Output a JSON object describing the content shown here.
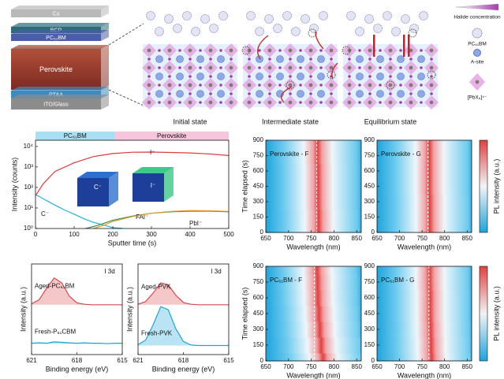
{
  "illustration": {
    "stack": [
      "Cu",
      "BCP",
      "PC₆₁BM",
      "Perovskite",
      "PTAA",
      "ITO/Glass"
    ],
    "states": [
      "Initial state",
      "Intermediate state",
      "Equilibrium state"
    ],
    "legend": [
      "Halide concentration",
      "PC₆₁BM",
      "A-site",
      "[PbX₆]⁴⁻"
    ]
  },
  "chart_data": [
    {
      "type": "line",
      "log_y": true,
      "xlabel": "Sputter time (s)",
      "ylabel": "Intensity (counts)",
      "xlim": [
        0,
        500
      ],
      "ylim": [
        1,
        20000
      ],
      "xticks": [
        0,
        100,
        200,
        300,
        400,
        500
      ],
      "yticks": [
        {
          "value": 1,
          "label": "10⁰"
        },
        {
          "value": 10,
          "label": "10¹"
        },
        {
          "value": 100,
          "label": "10²"
        },
        {
          "value": 1000,
          "label": "10³"
        },
        {
          "value": 10000,
          "label": "10⁴"
        }
      ],
      "regions": [
        {
          "label": "PC₆₁BM",
          "start": 0,
          "end": 205,
          "color": "#a9dff2"
        },
        {
          "label": "Perovskite",
          "start": 205,
          "end": 500,
          "color": "#f6c6dc"
        }
      ],
      "annotations": [
        "C⁻",
        "I⁻"
      ],
      "series": [
        {
          "name": "I⁻",
          "color": "#e0393e",
          "x": [
            0,
            20,
            50,
            100,
            150,
            200,
            250,
            300,
            350,
            400,
            450,
            500
          ],
          "values": [
            40,
            150,
            600,
            1600,
            3200,
            4500,
            5200,
            5300,
            5100,
            4800,
            4300,
            3600
          ]
        },
        {
          "name": "C⁻",
          "color": "#1fb1d8",
          "x": [
            0,
            25,
            50,
            75,
            100,
            125,
            150,
            175,
            200,
            225
          ],
          "values": [
            45,
            25,
            14,
            8,
            5,
            3,
            2,
            1.5,
            1.1,
            1
          ]
        },
        {
          "name": "FAI⁻",
          "color": "#2f8f4e",
          "x": [
            130,
            160,
            200,
            250,
            300,
            350,
            400,
            450,
            500
          ],
          "values": [
            1,
            1.4,
            2.5,
            4,
            5.5,
            6.5,
            7,
            7,
            6.5
          ]
        },
        {
          "name": "PbI⁻",
          "color": "#e79a2b",
          "x": [
            150,
            175,
            200,
            250,
            300,
            350,
            400,
            450,
            500
          ],
          "values": [
            1,
            1.4,
            2.2,
            3.8,
            5.5,
            6.8,
            7.5,
            7.3,
            6.8
          ]
        }
      ]
    },
    {
      "type": "line",
      "xlabel": "Binding energy (eV)",
      "ylabel": "Intensity (a.u.)",
      "xlim": [
        621,
        615
      ],
      "ylim": [
        0,
        20
      ],
      "xticks": [
        621,
        618,
        615
      ],
      "annotations": [
        "I 3d"
      ],
      "x": [
        621,
        620.5,
        620,
        619.5,
        619,
        618.5,
        618,
        617.5,
        617,
        616.5,
        616,
        615.5,
        615
      ],
      "series": [
        {
          "name": "Aged-PC₆₁BM",
          "color": "#d9484c",
          "values": [
            11.2,
            12.1,
            14.7,
            16.9,
            15.8,
            12.9,
            11.4,
            11.1,
            11,
            11,
            11,
            11,
            11
          ]
        },
        {
          "name": "Fresh-P₆₁CBM",
          "color": "#1aa6d6",
          "values": [
            2.5,
            2.6,
            2.5,
            2.8,
            2.7,
            2.6,
            2.5,
            2.6,
            2.5,
            2.5,
            2.4,
            2.5,
            2.5
          ]
        }
      ]
    },
    {
      "type": "line",
      "xlabel": "Binding energy (eV)",
      "ylabel": "Intensity (a.u.)",
      "xlim": [
        621,
        615
      ],
      "ylim": [
        0,
        20
      ],
      "xticks": [
        621,
        618,
        615
      ],
      "annotations": [
        "I 3d"
      ],
      "x": [
        621,
        620.5,
        620,
        619.5,
        619,
        618.5,
        618,
        617.5,
        617,
        616.5,
        616,
        615.5,
        615
      ],
      "series": [
        {
          "name": "Aged-PVK",
          "color": "#d9484c",
          "values": [
            11.1,
            11.7,
            13.6,
            15.8,
            15.4,
            13.1,
            11.5,
            11.1,
            11,
            11,
            11,
            11,
            11
          ]
        },
        {
          "name": "Fresh-PVK",
          "color": "#1aa6d6",
          "values": [
            2.2,
            3.2,
            6.6,
            10.6,
            9.9,
            5.7,
            2.9,
            2.1,
            2,
            2,
            2,
            2,
            2
          ]
        }
      ]
    },
    {
      "type": "heatmap",
      "title": "Perovskite - F",
      "xlabel": "Wavelength (nm)",
      "ylabel": "Time elapsed (s)",
      "xlim": [
        650,
        860
      ],
      "ylim": [
        0,
        900
      ],
      "xticks": [
        650,
        700,
        750,
        800,
        850
      ],
      "yticks": [
        0,
        150,
        300,
        450,
        600,
        750,
        900
      ],
      "y": [
        0,
        150,
        300,
        450,
        600,
        750,
        900
      ],
      "values": [
        766,
        766,
        765,
        765,
        765,
        764,
        764
      ],
      "dashed_line": 762
    },
    {
      "type": "heatmap",
      "title": "Perovskite - G",
      "xlabel": "Wavelength (nm)",
      "colorbar_label": "PL intensity (a.u.)",
      "xlim": [
        650,
        860
      ],
      "ylim": [
        0,
        900
      ],
      "xticks": [
        650,
        700,
        750,
        800,
        850
      ],
      "yticks": [
        0,
        150,
        300,
        450,
        600,
        750,
        900
      ],
      "y": [
        0,
        150,
        300,
        450,
        600,
        750,
        900
      ],
      "values": [
        767,
        767,
        767,
        766,
        766,
        766,
        766
      ],
      "dashed_line": 763
    },
    {
      "type": "heatmap",
      "title": "PC₆₁BM - F",
      "xlabel": "Wavelength (nm)",
      "ylabel": "Time elapsed (s)",
      "xlim": [
        650,
        860
      ],
      "ylim": [
        0,
        900
      ],
      "xticks": [
        650,
        700,
        750,
        800,
        850
      ],
      "yticks": [
        0,
        150,
        300,
        450,
        600,
        750,
        900
      ],
      "y": [
        0,
        150,
        300,
        450,
        600,
        750,
        900
      ],
      "values": [
        776,
        772,
        769,
        767,
        765,
        764,
        763
      ],
      "dashed_line": 757
    },
    {
      "type": "heatmap",
      "title": "PC₆₁BM - G",
      "xlabel": "Wavelength (nm)",
      "colorbar_label": "PL intensity (a.u.)",
      "xlim": [
        650,
        860
      ],
      "ylim": [
        0,
        900
      ],
      "xticks": [
        650,
        700,
        750,
        800,
        850
      ],
      "yticks": [
        0,
        150,
        300,
        450,
        600,
        750,
        900
      ],
      "y": [
        0,
        150,
        300,
        450,
        600,
        750,
        900
      ],
      "values": [
        771,
        770,
        769,
        768,
        768,
        767,
        767
      ],
      "dashed_line": 765
    }
  ]
}
